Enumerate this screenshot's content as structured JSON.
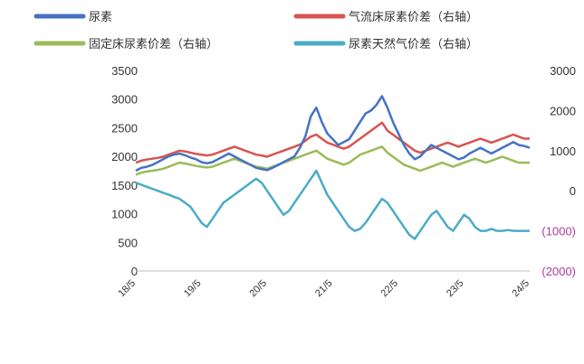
{
  "chart_data": {
    "type": "line",
    "legend": [
      {
        "name": "尿素",
        "color": "#4472c4",
        "axis": "left"
      },
      {
        "name": "气流床尿素价差（右轴）",
        "color": "#d9534f",
        "axis": "right"
      },
      {
        "name": "固定床尿素价差（右轴）",
        "color": "#9bbb59",
        "axis": "right"
      },
      {
        "name": "尿素天然气价差（右轴）",
        "color": "#4bacc6",
        "axis": "right"
      }
    ],
    "left_axis": {
      "ylim": [
        0,
        3500
      ],
      "ticks": [
        "0",
        "500",
        "1000",
        "1500",
        "2000",
        "2500",
        "3000",
        "3500"
      ]
    },
    "right_axis": {
      "ylim": [
        -2000,
        3000
      ],
      "ticks": [
        "(2000)",
        "(1000)",
        "0",
        "1000",
        "2000",
        "3000"
      ]
    },
    "x_tick_labels": [
      "18/5",
      "19/5",
      "20/5",
      "21/5",
      "22/5",
      "23/5",
      "24/5"
    ],
    "x_range": [
      0,
      72
    ],
    "series": [
      {
        "name": "尿素",
        "axis": "left",
        "values": [
          1750,
          1800,
          1820,
          1850,
          1900,
          1950,
          2000,
          2030,
          2050,
          2020,
          1980,
          1950,
          1900,
          1880,
          1900,
          1950,
          2000,
          2050,
          2000,
          1950,
          1900,
          1850,
          1800,
          1780,
          1760,
          1800,
          1850,
          1900,
          1950,
          2000,
          2150,
          2350,
          2700,
          2850,
          2600,
          2400,
          2300,
          2200,
          2250,
          2300,
          2450,
          2600,
          2750,
          2800,
          2900,
          3050,
          2850,
          2600,
          2400,
          2200,
          2050,
          1950,
          2000,
          2100,
          2200,
          2150,
          2100,
          2050,
          2000,
          1950,
          1980,
          2050,
          2100,
          2150,
          2100,
          2050,
          2100,
          2150,
          2200,
          2250,
          2200,
          2180,
          2150
        ]
      },
      {
        "name": "气流床尿素价差（右轴）",
        "axis": "right",
        "values": [
          700,
          750,
          780,
          800,
          820,
          850,
          900,
          950,
          1000,
          980,
          950,
          920,
          900,
          880,
          900,
          950,
          1000,
          1050,
          1100,
          1050,
          1000,
          950,
          900,
          880,
          850,
          900,
          950,
          1000,
          1050,
          1100,
          1150,
          1250,
          1350,
          1400,
          1300,
          1200,
          1150,
          1100,
          1050,
          1100,
          1200,
          1300,
          1400,
          1500,
          1600,
          1700,
          1500,
          1400,
          1300,
          1200,
          1100,
          1000,
          950,
          1000,
          1050,
          1100,
          1150,
          1200,
          1150,
          1100,
          1150,
          1200,
          1250,
          1300,
          1250,
          1200,
          1250,
          1300,
          1350,
          1400,
          1350,
          1300,
          1300
        ]
      },
      {
        "name": "固定床尿素价差（右轴）",
        "axis": "right",
        "values": [
          400,
          450,
          480,
          500,
          520,
          550,
          600,
          650,
          700,
          680,
          650,
          620,
          600,
          580,
          600,
          650,
          700,
          750,
          800,
          750,
          700,
          650,
          600,
          580,
          550,
          600,
          650,
          700,
          750,
          800,
          850,
          900,
          950,
          1000,
          900,
          800,
          750,
          700,
          650,
          700,
          800,
          900,
          950,
          1000,
          1050,
          1100,
          950,
          850,
          750,
          650,
          600,
          550,
          500,
          550,
          600,
          650,
          700,
          650,
          600,
          650,
          700,
          750,
          800,
          750,
          700,
          750,
          800,
          850,
          800,
          750,
          700,
          700,
          700
        ]
      },
      {
        "name": "尿素天然气价差（右轴）",
        "axis": "right",
        "values": [
          200,
          150,
          100,
          50,
          0,
          -50,
          -100,
          -150,
          -200,
          -300,
          -400,
          -600,
          -800,
          -900,
          -700,
          -500,
          -300,
          -200,
          -100,
          0,
          100,
          200,
          300,
          200,
          0,
          -200,
          -400,
          -600,
          -500,
          -300,
          -100,
          100,
          300,
          500,
          200,
          -100,
          -300,
          -500,
          -700,
          -900,
          -1000,
          -950,
          -800,
          -600,
          -400,
          -200,
          -300,
          -500,
          -700,
          -900,
          -1100,
          -1200,
          -1000,
          -800,
          -600,
          -500,
          -700,
          -900,
          -1000,
          -800,
          -600,
          -700,
          -900,
          -1000,
          -1000,
          -950,
          -1000,
          -1000,
          -980,
          -1000,
          -1000,
          -1000,
          -1000
        ]
      }
    ]
  }
}
